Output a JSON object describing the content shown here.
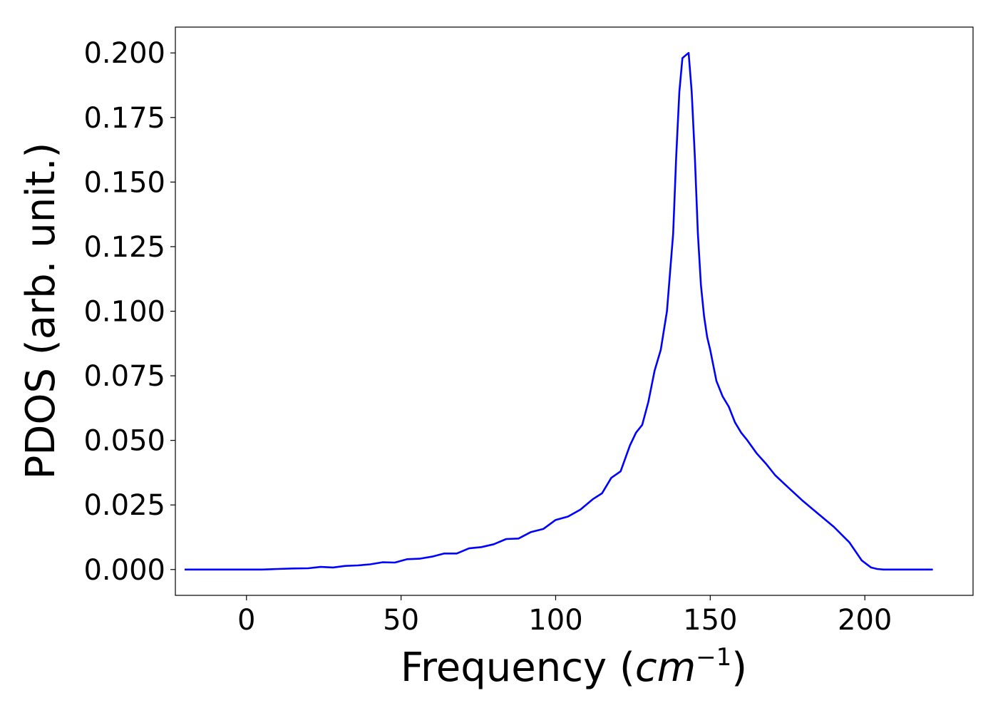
{
  "chart_data": {
    "type": "line",
    "title": "",
    "xlabel": "Frequency",
    "xlabel_unit_base": "cm",
    "xlabel_unit_exponent": "−1",
    "ylabel": "PDOS (arb. unit.)",
    "xlim": [
      -23,
      235
    ],
    "ylim": [
      -0.01,
      0.21
    ],
    "xticks": [
      0,
      50,
      100,
      150,
      200
    ],
    "xtick_labels": [
      "0",
      "50",
      "100",
      "150",
      "200"
    ],
    "yticks": [
      0.0,
      0.025,
      0.05,
      0.075,
      0.1,
      0.125,
      0.15,
      0.175,
      0.2
    ],
    "ytick_labels": [
      "0.000",
      "0.025",
      "0.050",
      "0.075",
      "0.100",
      "0.125",
      "0.150",
      "0.175",
      "0.200"
    ],
    "grid": false,
    "legend": "none",
    "series": [
      {
        "color": "#0000ff",
        "x": [
          -20,
          0,
          5,
          10,
          15,
          20,
          24,
          28,
          32,
          36,
          40,
          44,
          48,
          52,
          56,
          60,
          64,
          68,
          72,
          76,
          80,
          84,
          88,
          92,
          96,
          100,
          104,
          108,
          112,
          115,
          118,
          121,
          124,
          126,
          128,
          130,
          132,
          134,
          136,
          138,
          139,
          140,
          141,
          142,
          143,
          144,
          145,
          146,
          147,
          148,
          149,
          150,
          152,
          154,
          156,
          158,
          160,
          162,
          165,
          168,
          171,
          175,
          180,
          185,
          190,
          195,
          199,
          202,
          204,
          206,
          210,
          222
        ],
        "y": [
          0.0,
          0.0,
          0.0,
          0.0002,
          0.0004,
          0.0005,
          0.001,
          0.0008,
          0.0014,
          0.0016,
          0.002,
          0.0028,
          0.0027,
          0.004,
          0.0042,
          0.005,
          0.0062,
          0.0062,
          0.0082,
          0.0087,
          0.0098,
          0.0118,
          0.012,
          0.0145,
          0.0157,
          0.0192,
          0.0205,
          0.0232,
          0.0272,
          0.0295,
          0.0355,
          0.038,
          0.048,
          0.053,
          0.056,
          0.065,
          0.077,
          0.085,
          0.1,
          0.13,
          0.16,
          0.185,
          0.198,
          0.199,
          0.2,
          0.185,
          0.16,
          0.13,
          0.11,
          0.098,
          0.09,
          0.085,
          0.073,
          0.067,
          0.063,
          0.057,
          0.053,
          0.05,
          0.045,
          0.041,
          0.0365,
          0.032,
          0.0265,
          0.0215,
          0.0165,
          0.0105,
          0.0035,
          0.0008,
          0.0002,
          0.0,
          0.0,
          0.0
        ]
      }
    ]
  }
}
